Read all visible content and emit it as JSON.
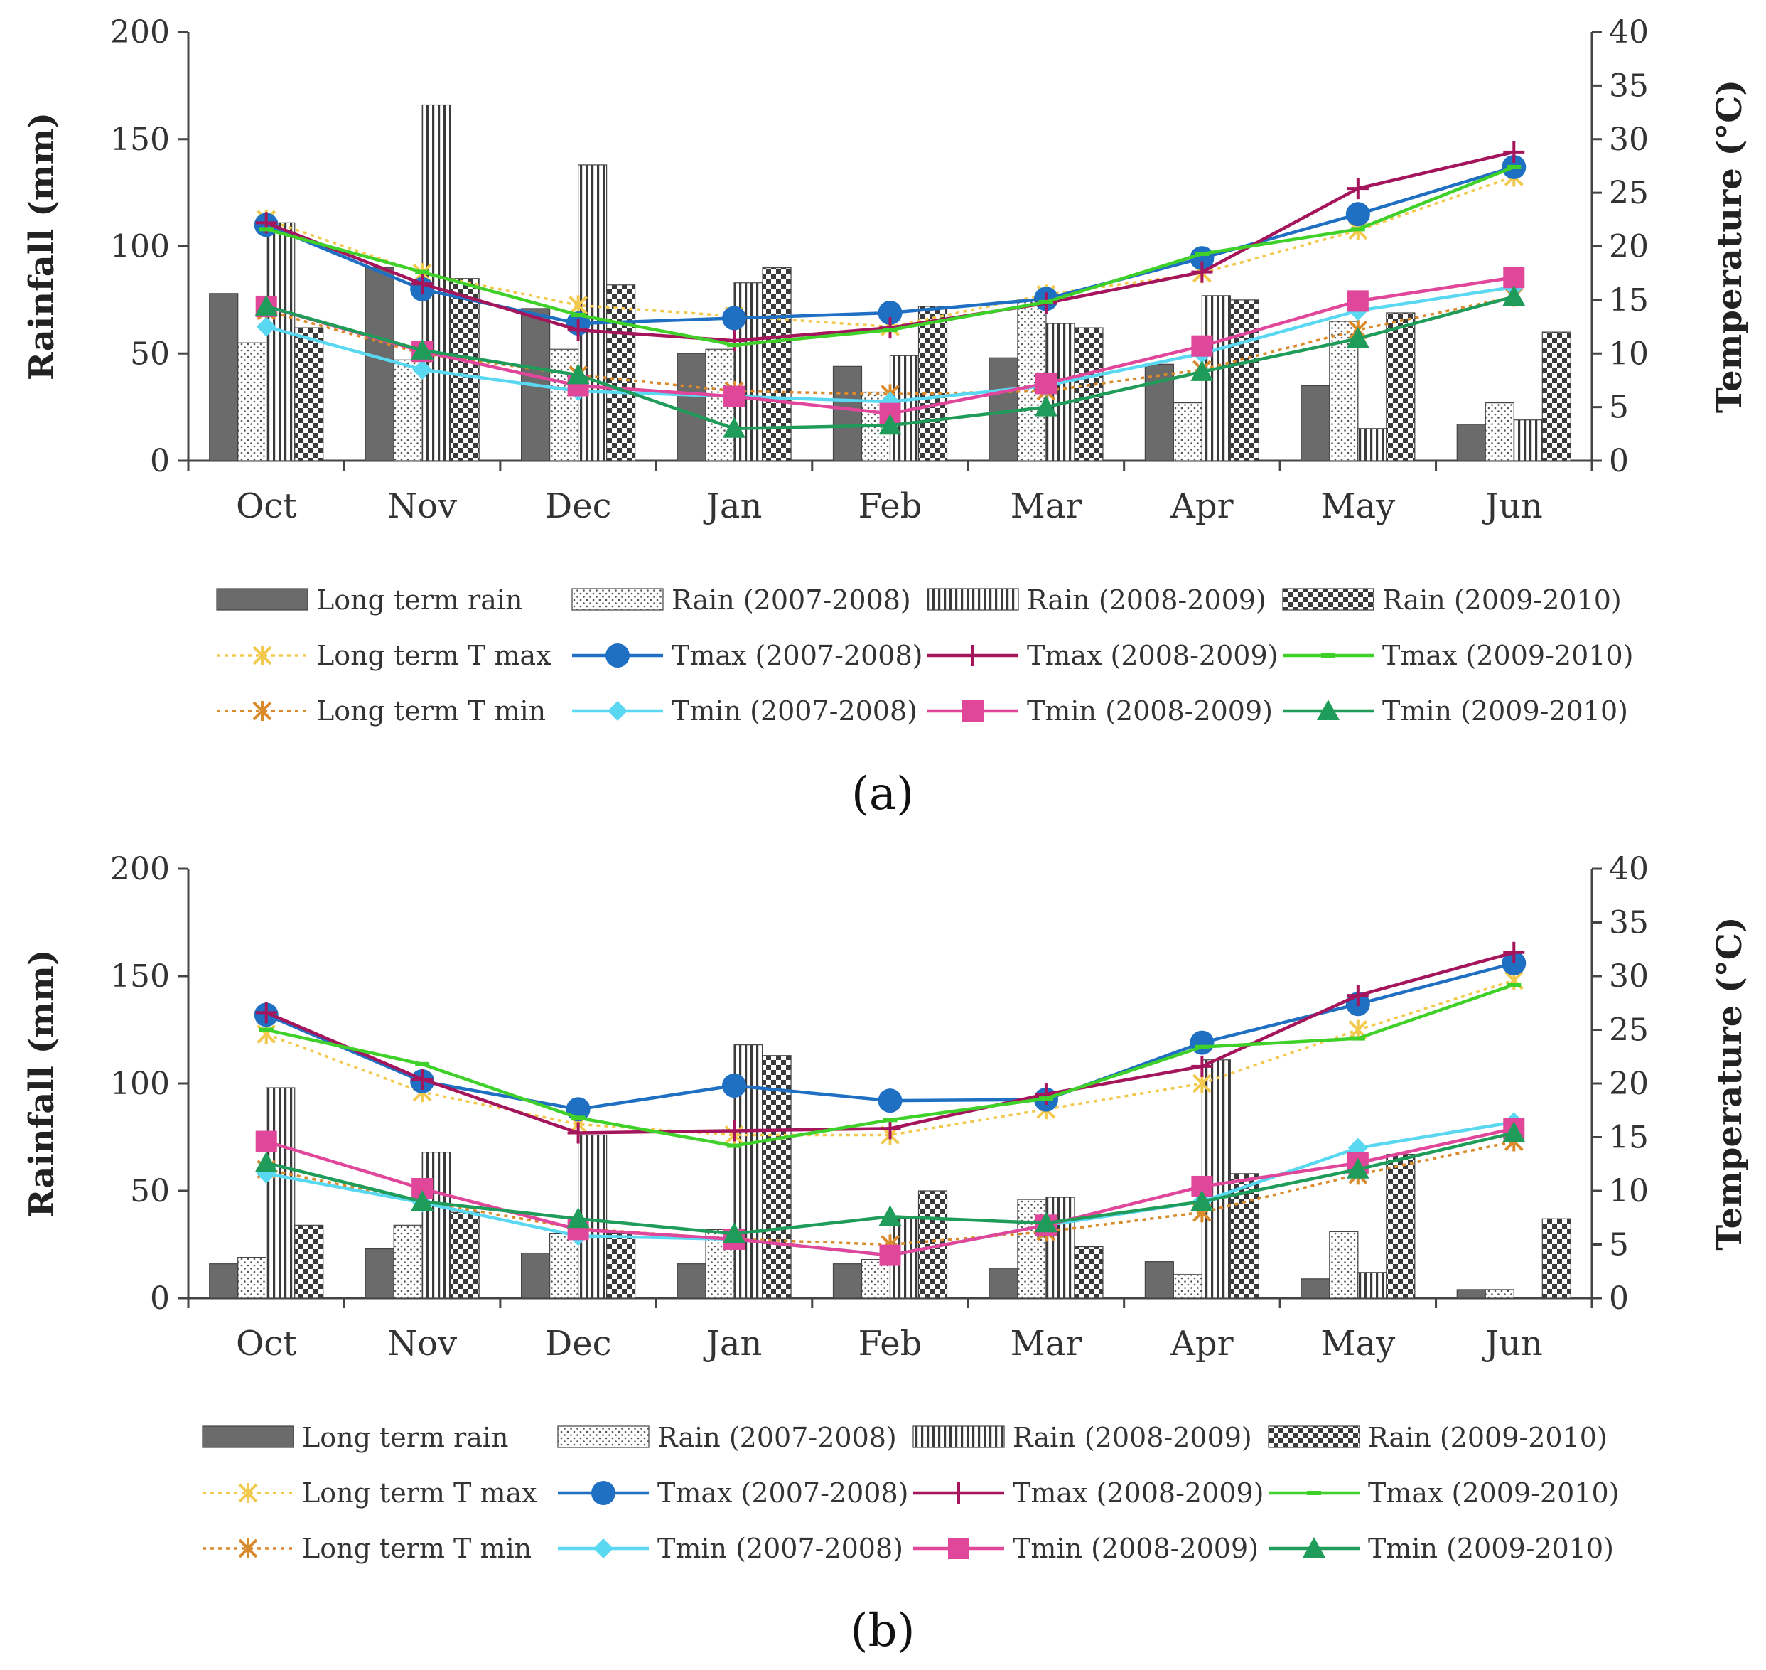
{
  "figure": {
    "caption_a": "(a)",
    "caption_b": "(b)"
  },
  "colors": {
    "long_rain": "#6b6b6b",
    "tmax_lt": "#f2c94c",
    "tmax_0708": "#1f6fc2",
    "tmax_0809": "#a5155c",
    "tmax_0910": "#3fd12a",
    "tmin_lt": "#d98a2b",
    "tmin_0708": "#5ad8f2",
    "tmin_0809": "#e0479b",
    "tmin_0910": "#1f9c5a"
  },
  "legend": {
    "items": [
      {
        "key": "long_rain",
        "label": "Long term rain",
        "kind": "bar",
        "pattern": "solid"
      },
      {
        "key": "rain_0708",
        "label": "Rain (2007-2008)",
        "kind": "bar",
        "pattern": "dots"
      },
      {
        "key": "rain_0809",
        "label": "Rain (2008-2009)",
        "kind": "bar",
        "pattern": "vstripes"
      },
      {
        "key": "rain_0910",
        "label": "Rain (2009-2010)",
        "kind": "bar",
        "pattern": "checker"
      },
      {
        "key": "tmax_lt",
        "label": "Long term T max",
        "kind": "line",
        "marker": "star",
        "dashed": true
      },
      {
        "key": "tmax_0708",
        "label": "Tmax (2007-2008)",
        "kind": "line",
        "marker": "circle"
      },
      {
        "key": "tmax_0809",
        "label": "Tmax (2008-2009)",
        "kind": "line",
        "marker": "plus"
      },
      {
        "key": "tmax_0910",
        "label": "Tmax (2009-2010)",
        "kind": "line",
        "marker": "dash"
      },
      {
        "key": "tmin_lt",
        "label": "Long term T min",
        "kind": "line",
        "marker": "star",
        "dashed": true
      },
      {
        "key": "tmin_0708",
        "label": "Tmin (2007-2008)",
        "kind": "line",
        "marker": "diamond"
      },
      {
        "key": "tmin_0809",
        "label": "Tmin (2008-2009)",
        "kind": "line",
        "marker": "square"
      },
      {
        "key": "tmin_0910",
        "label": "Tmin (2009-2010)",
        "kind": "line",
        "marker": "triangle"
      }
    ]
  },
  "chart_data": [
    {
      "panel": "a",
      "type": "bar",
      "categories": [
        "Oct",
        "Nov",
        "Dec",
        "Jan",
        "Feb",
        "Mar",
        "Apr",
        "May",
        "Jun"
      ],
      "ylabel": "Rainfall (mm)",
      "y2label": "Temperature (°C)",
      "ylim": [
        0,
        200
      ],
      "y2lim": [
        0,
        40
      ],
      "yticks": [
        "0",
        "50",
        "100",
        "150",
        "200"
      ],
      "y2ticks": [
        "0",
        "5",
        "10",
        "15",
        "20",
        "25",
        "30",
        "35",
        "40"
      ],
      "bar_series": [
        {
          "key": "long_rain",
          "name": "Long term rain",
          "values": [
            78,
            90,
            71,
            50,
            44,
            48,
            45,
            35,
            17
          ]
        },
        {
          "key": "rain_0708",
          "name": "Rain (2007-2008)",
          "values": [
            55,
            47,
            52,
            52,
            32,
            75,
            27,
            65,
            27
          ]
        },
        {
          "key": "rain_0809",
          "name": "Rain (2008-2009)",
          "values": [
            111,
            166,
            138,
            83,
            49,
            64,
            77,
            15,
            19
          ]
        },
        {
          "key": "rain_0910",
          "name": "Rain (2009-2010)",
          "values": [
            62,
            85,
            82,
            90,
            72,
            62,
            75,
            69,
            60
          ]
        }
      ],
      "line_series": [
        {
          "key": "tmax_lt",
          "name": "Long term T max",
          "values": [
            22.5,
            17.5,
            14.5,
            13.5,
            12.5,
            15.5,
            17.5,
            21.5,
            26.5
          ]
        },
        {
          "key": "tmax_0708",
          "name": "Tmax (2007-2008)",
          "values": [
            22,
            16,
            12.8,
            13.3,
            13.8,
            15.1,
            18.9,
            23,
            27.4
          ]
        },
        {
          "key": "tmax_0809",
          "name": "Tmax (2008-2009)",
          "values": [
            22.2,
            16.5,
            12.2,
            11.2,
            12.4,
            14.7,
            17.6,
            25.4,
            28.8
          ]
        },
        {
          "key": "tmax_0910",
          "name": "Tmax (2009-2010)",
          "values": [
            21.6,
            17.6,
            13.6,
            10.8,
            12.2,
            14.8,
            19.3,
            21.6,
            27.4
          ]
        },
        {
          "key": "tmin_lt",
          "name": "Long term T min",
          "values": [
            14,
            10,
            8,
            6.5,
            6.2,
            6.5,
            8.5,
            12.2,
            15.3
          ]
        },
        {
          "key": "tmin_0708",
          "name": "Tmin (2007-2008)",
          "values": [
            12.5,
            8.5,
            6.5,
            6,
            5.5,
            7,
            10,
            14,
            16.2
          ]
        },
        {
          "key": "tmin_0809",
          "name": "Tmin (2008-2009)",
          "values": [
            14.4,
            10.2,
            7,
            6,
            4.4,
            7.2,
            10.7,
            14.9,
            17.1
          ]
        },
        {
          "key": "tmin_0910",
          "name": "Tmin (2009-2010)",
          "values": [
            14.4,
            10.3,
            8,
            3,
            3.3,
            5,
            8.3,
            11.4,
            15.3
          ]
        }
      ]
    },
    {
      "panel": "b",
      "type": "bar",
      "categories": [
        "Oct",
        "Nov",
        "Dec",
        "Jan",
        "Feb",
        "Mar",
        "Apr",
        "May",
        "Jun"
      ],
      "ylabel": "Rainfall (mm)",
      "y2label": "Temperature (°C)",
      "ylim": [
        0,
        200
      ],
      "y2lim": [
        0,
        40
      ],
      "yticks": [
        "0",
        "50",
        "100",
        "150",
        "200"
      ],
      "y2ticks": [
        "0",
        "5",
        "10",
        "15",
        "20",
        "25",
        "30",
        "35",
        "40"
      ],
      "bar_series": [
        {
          "key": "long_rain",
          "name": "Long term rain",
          "values": [
            16,
            23,
            21,
            16,
            16,
            14,
            17,
            9,
            4
          ]
        },
        {
          "key": "rain_0708",
          "name": "Rain (2007-2008)",
          "values": [
            19,
            34,
            30,
            32,
            18,
            46,
            11,
            31,
            4
          ]
        },
        {
          "key": "rain_0809",
          "name": "Rain (2008-2009)",
          "values": [
            98,
            68,
            76,
            118,
            38,
            47,
            111,
            12,
            0
          ]
        },
        {
          "key": "rain_0910",
          "name": "Rain (2009-2010)",
          "values": [
            34,
            40,
            30,
            113,
            50,
            24,
            58,
            67,
            37
          ]
        }
      ],
      "line_series": [
        {
          "key": "tmax_lt",
          "name": "Long term T max",
          "values": [
            24.6,
            19.2,
            16.2,
            15.2,
            15.2,
            17.6,
            20,
            25,
            29.6
          ]
        },
        {
          "key": "tmax_0708",
          "name": "Tmax (2007-2008)",
          "values": [
            26.4,
            20.2,
            17.6,
            19.8,
            18.4,
            18.5,
            23.8,
            27.4,
            31.2
          ]
        },
        {
          "key": "tmax_0809",
          "name": "Tmax (2008-2009)",
          "values": [
            26.6,
            20.4,
            15.4,
            15.6,
            15.8,
            19,
            21.6,
            28.2,
            32.2
          ]
        },
        {
          "key": "tmax_0910",
          "name": "Tmax (2009-2010)",
          "values": [
            25,
            21.8,
            16.8,
            14.2,
            16.6,
            18.6,
            23.4,
            24.2,
            29.2
          ]
        },
        {
          "key": "tmin_lt",
          "name": "Long term T min",
          "values": [
            12,
            9,
            6.5,
            5.5,
            5,
            6.2,
            8,
            11.5,
            14.6
          ]
        },
        {
          "key": "tmin_0708",
          "name": "Tmin (2007-2008)",
          "values": [
            11.6,
            8.9,
            5.8,
            5.5,
            4,
            6.8,
            9,
            14,
            16.4
          ]
        },
        {
          "key": "tmin_0809",
          "name": "Tmin (2008-2009)",
          "values": [
            14.6,
            10.2,
            6.4,
            5.5,
            4,
            6.8,
            10.4,
            12.6,
            15.8
          ]
        },
        {
          "key": "tmin_0910",
          "name": "Tmin (2009-2010)",
          "values": [
            12.6,
            9,
            7.4,
            6,
            7.6,
            7,
            9,
            12,
            15.4
          ]
        }
      ]
    }
  ]
}
